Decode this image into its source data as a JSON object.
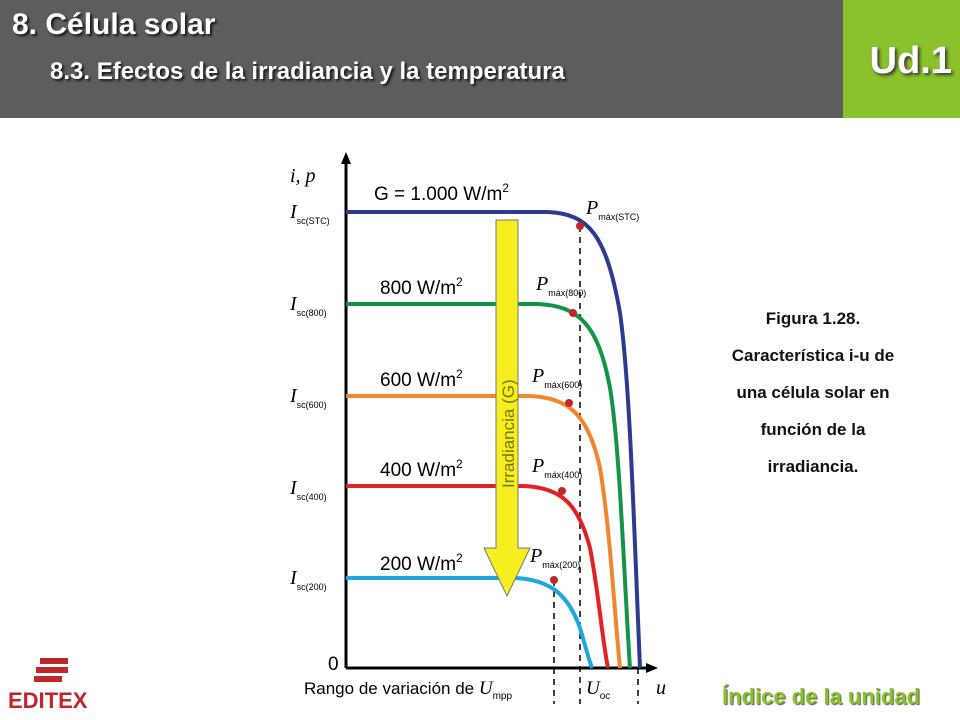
{
  "header": {
    "title": "8. Célula solar",
    "subtitle": "8.3. Efectos de la irradiancia y la temperatura",
    "unit_label": "Ud.1"
  },
  "colors": {
    "header_bg": "#5d5d5d",
    "unit_box_bg": "#89c22a",
    "link": "#89c22a",
    "logo": "#c0272d",
    "arrow": "#f7ee1f"
  },
  "figure": {
    "axis_y_label": "i, p",
    "axis_x_label": "u",
    "origin_label": "0",
    "arrow_label": "Irradiancia (G)",
    "bottom_label_prefix": "Rango de variación de ",
    "bottom_label_var": "U",
    "bottom_label_sub": "mpp",
    "uoc_var": "U",
    "uoc_sub": "oc",
    "curves": [
      {
        "label": "G = 1.000 W/m",
        "isc_sub": "sc(STC)",
        "pmax_sub": "máx(STC)",
        "color": "#2c3a92"
      },
      {
        "label": "800 W/m",
        "isc_sub": "sc(800)",
        "pmax_sub": "máx(800)",
        "color": "#149447"
      },
      {
        "label": "600 W/m",
        "isc_sub": "sc(600)",
        "pmax_sub": "máx(600)",
        "color": "#f2862e"
      },
      {
        "label": "400 W/m",
        "isc_sub": "sc(400)",
        "pmax_sub": "máx(400)",
        "color": "#e32322"
      },
      {
        "label": "200 W/m",
        "isc_sub": "sc(200)",
        "pmax_sub": "máx(200)",
        "color": "#1ea7e1"
      }
    ]
  },
  "caption": [
    "Figura 1.28.",
    "Característica i-u de",
    "una célula solar en",
    "función de la",
    "irradiancia."
  ],
  "footer": {
    "logo_text": "EDITEX",
    "index_link": "Índice de la unidad"
  }
}
